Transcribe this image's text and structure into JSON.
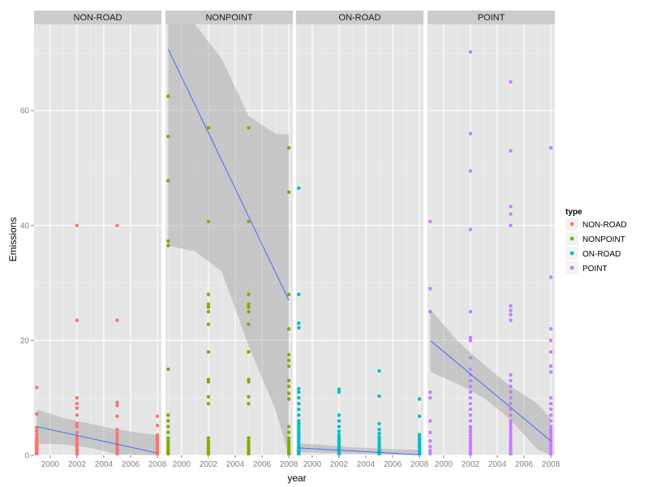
{
  "chart_data": {
    "type": "scatter",
    "facet_by": "type",
    "facets": [
      "NON-ROAD",
      "NONPOINT",
      "ON-ROAD",
      "POINT"
    ],
    "xlabel": "year",
    "ylabel": "Emissions",
    "xlim": [
      1998.8,
      2008.3
    ],
    "ylim": [
      0,
      75
    ],
    "x_ticks": [
      2000,
      2002,
      2004,
      2006,
      2008
    ],
    "y_ticks": [
      0,
      20,
      40,
      60
    ],
    "grid": true,
    "legend": {
      "title": "type",
      "placement": "right",
      "entries": [
        "NON-ROAD",
        "NONPOINT",
        "ON-ROAD",
        "POINT"
      ]
    },
    "colors": {
      "NON-ROAD": "#F8766D",
      "NONPOINT": "#7CAE00",
      "ON-ROAD": "#00BFC4",
      "POINT": "#C77CFF",
      "trend": "#3366FF",
      "band": "#999999"
    },
    "series": [
      {
        "name": "NON-ROAD",
        "points": [
          {
            "x": 1999,
            "y": [
              0.1,
              0.3,
              0.5,
              0.7,
              0.9,
              1.1,
              1.3,
              1.5,
              1.7,
              1.9,
              2.1,
              2.3,
              2.6,
              3.0,
              3.6,
              4.2,
              4.8,
              7.2,
              11.8
            ]
          },
          {
            "x": 2002,
            "y": [
              0.2,
              0.5,
              0.8,
              1.1,
              1.4,
              1.7,
              2.0,
              2.4,
              2.8,
              3.3,
              4.0,
              5.0,
              5.5,
              7.0,
              8.2,
              9.0,
              10.0,
              23.5,
              40.0
            ]
          },
          {
            "x": 2005,
            "y": [
              0.2,
              0.5,
              0.8,
              1.1,
              1.4,
              1.7,
              2.0,
              2.4,
              2.8,
              3.3,
              3.9,
              4.5,
              6.8,
              8.7,
              9.2,
              23.5,
              40.0
            ]
          },
          {
            "x": 2008,
            "y": [
              0.1,
              0.3,
              0.5,
              0.7,
              0.9,
              1.1,
              1.4,
              1.7,
              2.0,
              2.4,
              2.8,
              3.1,
              3.5,
              5.2,
              6.8
            ]
          }
        ],
        "trend": {
          "x0": 1999,
          "y0": 5.0,
          "x1": 2008,
          "y1": 0.4
        },
        "band": [
          [
            1999,
            2.0,
            8.0
          ],
          [
            2001,
            1.9,
            6.5
          ],
          [
            2003,
            1.3,
            5.5
          ],
          [
            2005,
            0.2,
            4.5
          ],
          [
            2008,
            -2.5,
            3.5
          ]
        ]
      },
      {
        "name": "NONPOINT",
        "points": [
          {
            "x": 1999,
            "y": [
              0.2,
              0.5,
              0.8,
              1.2,
              1.6,
              2.0,
              2.5,
              3.0,
              4.0,
              5.0,
              6.0,
              7.0,
              15.0,
              36.5,
              37.3,
              47.8,
              55.5,
              62.5
            ]
          },
          {
            "x": 2002,
            "y": [
              0.2,
              0.5,
              0.8,
              1.2,
              1.6,
              2.0,
              2.5,
              3.0,
              9.0,
              10.2,
              12.8,
              13.2,
              18.0,
              22.8,
              25.0,
              25.8,
              26.3,
              28.0,
              40.7,
              57.0
            ]
          },
          {
            "x": 2005,
            "y": [
              0.2,
              0.5,
              0.8,
              1.2,
              1.6,
              2.0,
              2.5,
              3.0,
              9.0,
              10.2,
              12.8,
              13.2,
              18.0,
              22.8,
              25.0,
              25.8,
              26.3,
              28.0,
              40.7,
              57.0
            ]
          },
          {
            "x": 2008,
            "y": [
              0.2,
              0.5,
              0.8,
              1.2,
              1.6,
              2.0,
              2.5,
              3.0,
              4.0,
              5.0,
              9.8,
              10.8,
              12.0,
              13.0,
              15.5,
              16.5,
              17.5,
              22.0,
              28.0,
              45.8,
              53.5
            ]
          }
        ],
        "trend": {
          "x0": 1999,
          "y0": 70.7,
          "x1": 2008,
          "y1": 27.0
        },
        "band": [
          [
            1999,
            36.5,
            75.0
          ],
          [
            2001,
            35.5,
            75.0
          ],
          [
            2003,
            32.0,
            69.0
          ],
          [
            2005,
            19.0,
            59.0
          ],
          [
            2007,
            8.0,
            56.0
          ],
          [
            2008,
            -2.0,
            55.8
          ]
        ]
      },
      {
        "name": "ON-ROAD",
        "points": [
          {
            "x": 1999,
            "y": [
              0.2,
              0.4,
              0.6,
              0.8,
              1.0,
              1.3,
              1.6,
              2.0,
              2.4,
              2.8,
              3.2,
              3.6,
              4.0,
              4.5,
              5.0,
              5.5,
              6.0,
              7.0,
              8.0,
              9.0,
              10.0,
              11.0,
              11.6,
              22.2,
              23.0,
              28.0,
              46.5
            ]
          },
          {
            "x": 2002,
            "y": [
              0.2,
              0.4,
              0.6,
              0.8,
              1.0,
              1.3,
              1.6,
              2.0,
              2.4,
              2.8,
              3.2,
              3.6,
              4.2,
              5.0,
              6.0,
              7.0,
              11.0,
              11.5
            ]
          },
          {
            "x": 2005,
            "y": [
              0.2,
              0.4,
              0.6,
              0.8,
              1.0,
              1.3,
              1.6,
              2.0,
              2.4,
              2.8,
              3.2,
              3.8,
              4.5,
              5.5,
              10.3,
              14.7
            ]
          },
          {
            "x": 2008,
            "y": [
              0.2,
              0.4,
              0.6,
              0.8,
              1.0,
              1.3,
              1.6,
              2.0,
              2.4,
              2.8,
              3.2,
              3.6,
              6.8,
              9.8
            ]
          }
        ],
        "trend": {
          "x0": 1999,
          "y0": 1.3,
          "x1": 2008,
          "y1": 0.1
        },
        "band": [
          [
            1999,
            0.5,
            2.1
          ],
          [
            2003,
            0.3,
            1.4
          ],
          [
            2005,
            0.2,
            1.2
          ],
          [
            2008,
            -0.7,
            0.9
          ]
        ]
      },
      {
        "name": "POINT",
        "points": [
          {
            "x": 1999,
            "y": [
              0.3,
              0.8,
              1.5,
              2.5,
              4.0,
              6.0,
              10.0,
              11.0,
              25.0,
              29.0,
              40.7
            ]
          },
          {
            "x": 2002,
            "y": [
              0.2,
              0.5,
              0.8,
              1.2,
              1.6,
              2.0,
              2.5,
              3.0,
              3.5,
              4.0,
              4.5,
              5.0,
              6.0,
              7.0,
              8.0,
              9.0,
              10.0,
              11.0,
              12.0,
              13.0,
              14.0,
              15.0,
              17.0,
              20.0,
              20.5,
              25.0,
              39.3,
              49.5,
              56.0,
              70.2
            ]
          },
          {
            "x": 2005,
            "y": [
              0.2,
              0.5,
              0.8,
              1.2,
              1.6,
              2.0,
              2.5,
              3.0,
              3.5,
              4.0,
              4.5,
              5.0,
              5.5,
              6.0,
              7.0,
              8.0,
              9.0,
              10.0,
              11.0,
              12.0,
              13.0,
              14.0,
              23.5,
              24.5,
              25.2,
              26.0,
              40.0,
              42.0,
              43.3,
              53.0,
              65.0
            ]
          },
          {
            "x": 2008,
            "y": [
              0.2,
              0.5,
              0.8,
              1.2,
              1.6,
              2.0,
              2.5,
              3.0,
              3.5,
              4.0,
              4.5,
              5.0,
              6.0,
              7.0,
              8.0,
              9.0,
              10.0,
              14.5,
              15.5,
              18.0,
              20.0,
              22.0,
              31.0,
              53.5
            ]
          }
        ],
        "trend": {
          "x0": 1999,
          "y0": 20.0,
          "x1": 2008,
          "y1": 2.5
        },
        "band": [
          [
            1999,
            14.5,
            25.5
          ],
          [
            2001,
            12.5,
            20.0
          ],
          [
            2003,
            10.0,
            15.8
          ],
          [
            2005,
            6.2,
            12.0
          ],
          [
            2007,
            1.0,
            9.0
          ],
          [
            2008,
            -1.5,
            6.5
          ]
        ]
      }
    ]
  }
}
